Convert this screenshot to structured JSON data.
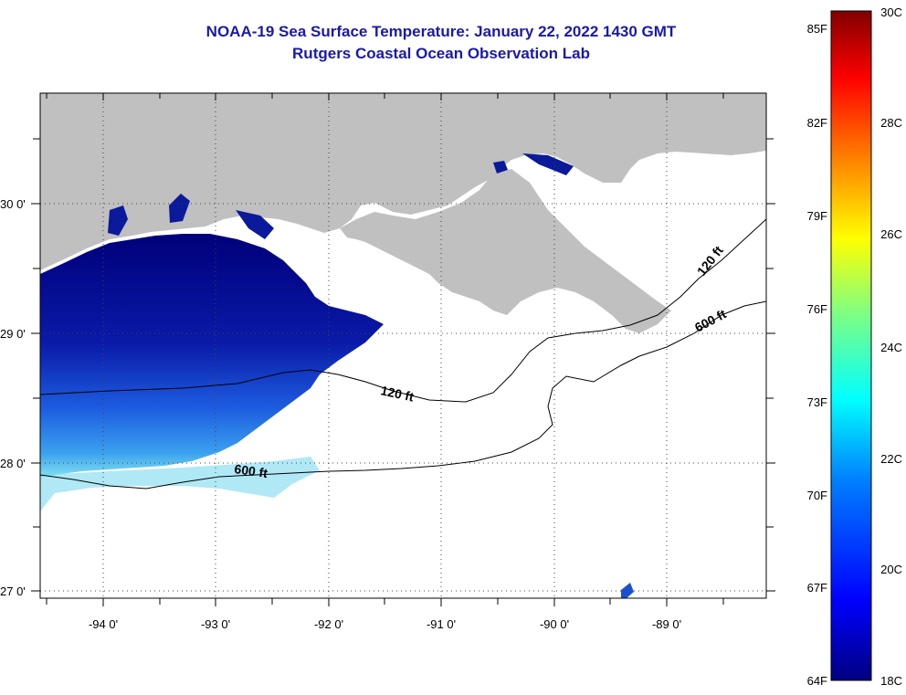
{
  "title": "NOAA-19 Sea Surface Temperature:  January 22, 2022 1430 GMT",
  "subtitle": "Rutgers Coastal Ocean Observation Lab",
  "map": {
    "lat_labels": [
      "30 0'",
      "29 0'",
      "28 0'",
      "27 0'"
    ],
    "lon_labels": [
      "-94 0'",
      "-93 0'",
      "-92 0'",
      "-91 0'",
      "-90 0'",
      "-89 0'"
    ],
    "contour_labels": [
      {
        "text": "120 ft",
        "contour": "120ft-west"
      },
      {
        "text": "120 ft",
        "contour": "120ft-east"
      },
      {
        "text": "600 ft",
        "contour": "600ft-west"
      },
      {
        "text": "600 ft",
        "contour": "600ft-east"
      }
    ],
    "colors": {
      "land": "#c0c0c0",
      "cloud": "#ffffff",
      "title": "#1a1aa6",
      "grid": "#444444"
    }
  },
  "colorbar": {
    "fahrenheit_labels": [
      "85F",
      "82F",
      "79F",
      "76F",
      "73F",
      "70F",
      "67F",
      "64F"
    ],
    "celsius_labels": [
      "30C",
      "28C",
      "26C",
      "24C",
      "22C",
      "20C",
      "18C"
    ],
    "min_c": 18,
    "max_c": 30,
    "colors": [
      "#800000",
      "#ff0000",
      "#ff8000",
      "#ffff00",
      "#80ff80",
      "#00ffff",
      "#0080ff",
      "#0000ff",
      "#000080"
    ]
  }
}
